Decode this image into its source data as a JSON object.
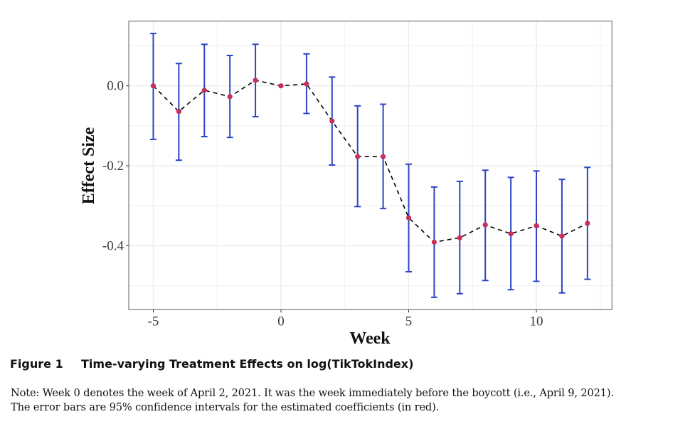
{
  "figure": {
    "label": "Figure 1",
    "title": "Time-varying Treatment Effects on log(TikTokIndex)",
    "note_lines": [
      "Note: Week 0 denotes the week of April 2, 2021. It was the week immediately before the boycott (i.e., April 9, 2021).",
      "The error bars are 95% confidence intervals for the estimated coefficients (in red)."
    ]
  },
  "colors": {
    "point": "#C6305A",
    "errorbar": "#2C44C6",
    "line": "#000000",
    "grid": "#EBEBEB",
    "frame": "#7A7A7A"
  },
  "chart_data": {
    "type": "scatter",
    "title": "",
    "xlabel": "Week",
    "ylabel": "Effect Size",
    "xlim": [
      -5.96,
      12.96
    ],
    "ylim": [
      -0.56,
      0.162
    ],
    "xticks": [
      -5,
      0,
      5,
      10
    ],
    "xtick_labels": [
      "-5",
      "0",
      "5",
      "10"
    ],
    "xminor": [
      -2.5,
      2.5,
      7.5,
      12.5
    ],
    "yticks": [
      0.0,
      -0.2,
      -0.4
    ],
    "ytick_labels": [
      "0.0",
      "-0.2",
      "-0.4"
    ],
    "yminor": [
      0.1,
      -0.1,
      -0.3,
      -0.5
    ],
    "grid": true,
    "legend": "none",
    "connect_line": "dashed",
    "x": [
      -5,
      -4,
      -3,
      -2,
      -1,
      0,
      1,
      2,
      3,
      4,
      5,
      6,
      7,
      8,
      9,
      10,
      11,
      12
    ],
    "series": [
      {
        "name": "Estimated coefficient",
        "values": [
          0.0,
          -0.064,
          -0.011,
          -0.027,
          0.014,
          0.0,
          0.005,
          -0.088,
          -0.177,
          -0.177,
          -0.33,
          -0.391,
          -0.38,
          -0.348,
          -0.37,
          -0.35,
          -0.376,
          -0.344
        ],
        "ci_lower": [
          -0.134,
          -0.186,
          -0.127,
          -0.129,
          -0.077,
          null,
          -0.069,
          -0.198,
          -0.302,
          -0.307,
          -0.465,
          -0.529,
          -0.52,
          -0.487,
          -0.51,
          -0.489,
          -0.518,
          -0.484
        ],
        "ci_upper": [
          0.131,
          0.056,
          0.104,
          0.076,
          0.104,
          null,
          0.08,
          0.022,
          -0.05,
          -0.046,
          -0.196,
          -0.253,
          -0.239,
          -0.211,
          -0.229,
          -0.213,
          -0.234,
          -0.204
        ]
      }
    ]
  }
}
